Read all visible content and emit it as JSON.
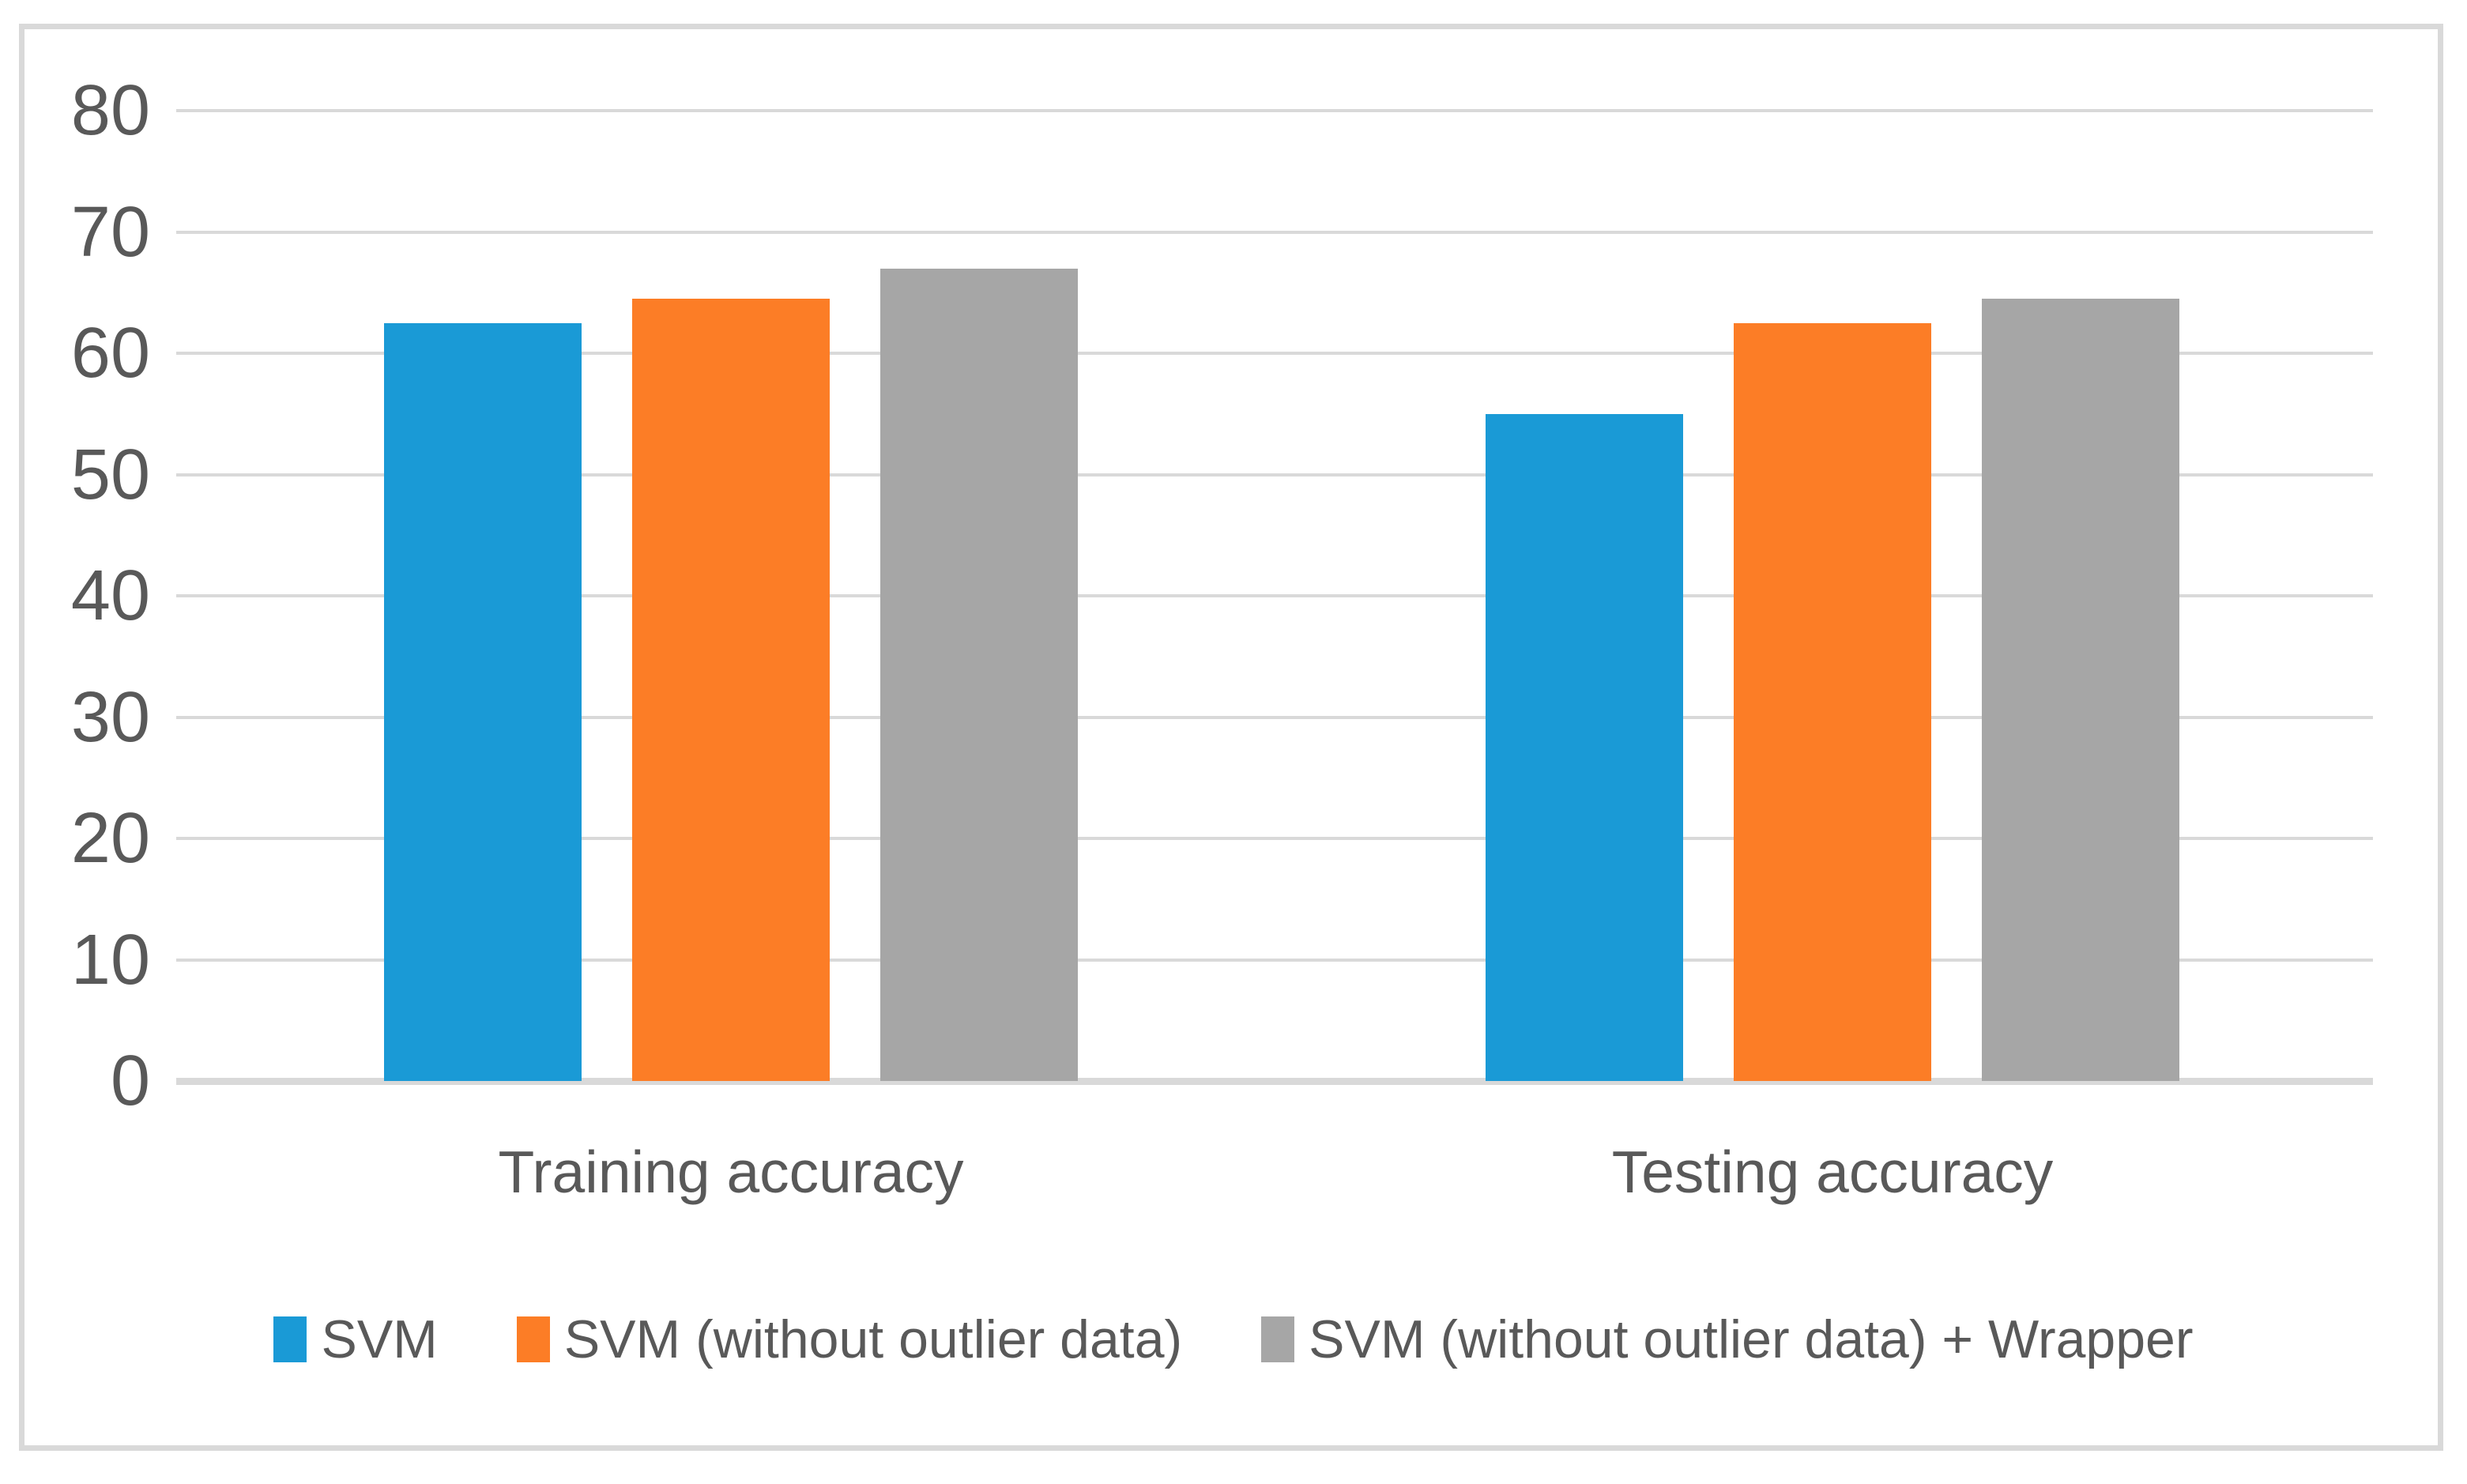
{
  "chart_data": {
    "type": "bar",
    "categories": [
      "Training accuracy",
      "Testing accuracy"
    ],
    "series": [
      {
        "name": "SVM",
        "color": "#1a9ad6",
        "values": [
          62.5,
          55
        ]
      },
      {
        "name": "SVM (without outlier data)",
        "color": "#fc7d26",
        "values": [
          64.5,
          62.5
        ]
      },
      {
        "name": "SVM (without outlier data) + Wrapper",
        "color": "#a6a6a6",
        "values": [
          67,
          64.5
        ]
      }
    ],
    "title": "",
    "xlabel": "",
    "ylabel": "",
    "ylim": [
      0,
      80
    ],
    "yticks": [
      0,
      10,
      20,
      30,
      40,
      50,
      60,
      70,
      80
    ],
    "grid": true,
    "legend_position": "bottom"
  },
  "colors": {
    "background": "#ffffff",
    "frame_border": "#d9d9d9",
    "gridline": "#d9d9d9",
    "axis_baseline": "#d9d9d9",
    "text": "#595959"
  }
}
